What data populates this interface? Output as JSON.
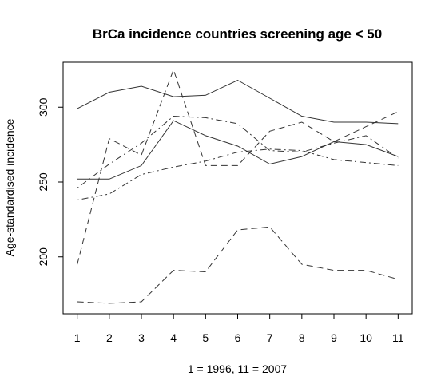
{
  "chart_data": {
    "type": "line",
    "title": "BrCa incidence countries screening age < 50",
    "xlabel": "1 = 1996, 11 = 2007",
    "ylabel": "Age-standardised incidence",
    "x": [
      1,
      2,
      3,
      4,
      5,
      6,
      7,
      8,
      9,
      10,
      11
    ],
    "xlim": [
      0.56,
      11.44
    ],
    "ylim": [
      162,
      330
    ],
    "xticks": [
      1,
      2,
      3,
      4,
      5,
      6,
      7,
      8,
      9,
      10,
      11
    ],
    "yticks": [
      200,
      250,
      300
    ],
    "grid": false,
    "legend": "none",
    "series": [
      {
        "values": [
          299,
          310,
          314,
          307,
          308,
          318,
          306,
          294,
          290,
          290,
          289
        ],
        "line_style": "solid"
      },
      {
        "values": [
          252,
          252,
          261,
          291,
          281,
          274,
          262,
          267,
          277,
          275,
          267
        ],
        "line_style": "solid"
      },
      {
        "values": [
          195,
          279,
          268,
          325,
          261,
          261,
          284,
          290,
          277,
          287,
          297
        ],
        "line_style": "dashed"
      },
      {
        "values": [
          170,
          169,
          170,
          191,
          190,
          218,
          220,
          195,
          191,
          191,
          185
        ],
        "line_style": "dashed"
      },
      {
        "values": [
          246,
          262,
          276,
          294,
          293,
          289,
          271,
          270,
          276,
          281,
          266
        ],
        "line_style": "dotdash"
      },
      {
        "values": [
          238,
          242,
          255,
          260,
          264,
          270,
          272,
          271,
          265,
          263,
          261
        ],
        "line_style": "dotdash"
      }
    ]
  }
}
